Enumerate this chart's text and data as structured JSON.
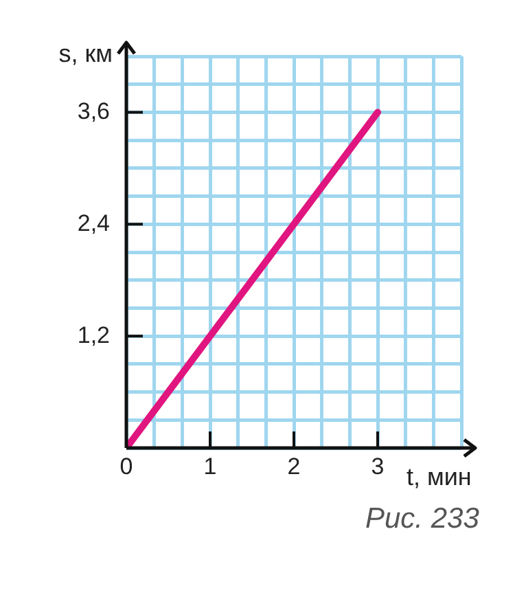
{
  "chart_data": {
    "type": "line",
    "xlabel": "t, мин",
    "ylabel": "s, км",
    "x": [
      0,
      3
    ],
    "series": [
      {
        "color": "#e0157f",
        "values": [
          0,
          3.6
        ]
      }
    ],
    "xlim": [
      0,
      4
    ],
    "ylim": [
      0,
      4.2
    ],
    "xticks": [
      {
        "value": 0,
        "label": "0"
      },
      {
        "value": 0.33,
        "label": null
      },
      {
        "value": 0.67,
        "label": null
      },
      {
        "value": 1,
        "label": "1"
      },
      {
        "value": 1.33,
        "label": null
      },
      {
        "value": 1.67,
        "label": null
      },
      {
        "value": 2,
        "label": "2"
      },
      {
        "value": 2.33,
        "label": null
      },
      {
        "value": 2.67,
        "label": null
      },
      {
        "value": 3,
        "label": "3"
      },
      {
        "value": 3.33,
        "label": null
      },
      {
        "value": 3.67,
        "label": null
      },
      {
        "value": 4,
        "label": null
      }
    ],
    "yticks": [
      {
        "value": 0,
        "label": null
      },
      {
        "value": 0.3,
        "label": null
      },
      {
        "value": 0.6,
        "label": null
      },
      {
        "value": 0.9,
        "label": null
      },
      {
        "value": 1.2,
        "label": "1,2"
      },
      {
        "value": 1.5,
        "label": null
      },
      {
        "value": 1.8,
        "label": null
      },
      {
        "value": 2.1,
        "label": null
      },
      {
        "value": 2.4,
        "label": "2,4"
      },
      {
        "value": 2.7,
        "label": null
      },
      {
        "value": 3,
        "label": null
      },
      {
        "value": 3.3,
        "label": null
      },
      {
        "value": 3.6,
        "label": "3,6"
      },
      {
        "value": 3.9,
        "label": null
      },
      {
        "value": 4.2,
        "label": null
      }
    ],
    "grid": true,
    "legend": false,
    "marker": "none",
    "line_style": "solid",
    "annotations": [
      "Рис. 233"
    ]
  }
}
